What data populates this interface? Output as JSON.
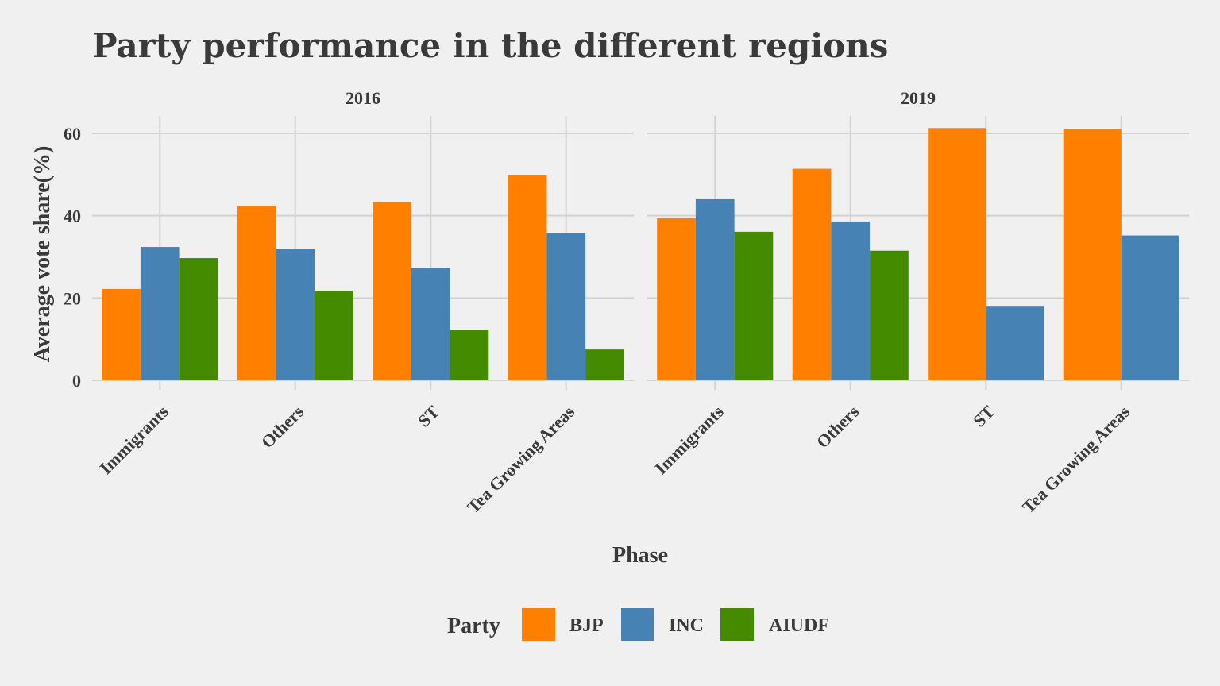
{
  "chart_data": {
    "type": "bar",
    "title": "Party performance in the different regions",
    "xlabel": "Phase",
    "ylabel": "Average vote share(%)",
    "ylim": [
      0,
      64
    ],
    "yticks": [
      "0",
      "20",
      "40",
      "60"
    ],
    "grid": true,
    "legend": {
      "title": "Party",
      "placement": "bottom",
      "items": [
        {
          "name": "BJP",
          "color": "#ff7f00"
        },
        {
          "name": "INC",
          "color": "#4682b4"
        },
        {
          "name": "AIUDF",
          "color": "#458b00"
        }
      ]
    },
    "categories": [
      "Immigrants",
      "Others",
      "ST",
      "Tea Growing Areas"
    ],
    "facets": [
      {
        "label": "2016",
        "series": [
          {
            "name": "BJP",
            "values": [
              22.2,
              42.3,
              43.3,
              49.9
            ]
          },
          {
            "name": "INC",
            "values": [
              32.4,
              32.0,
              27.2,
              35.8
            ]
          },
          {
            "name": "AIUDF",
            "values": [
              29.7,
              21.8,
              12.2,
              7.5
            ]
          }
        ]
      },
      {
        "label": "2019",
        "series": [
          {
            "name": "BJP",
            "values": [
              39.4,
              51.4,
              61.3,
              61.1
            ]
          },
          {
            "name": "INC",
            "values": [
              44.0,
              38.6,
              17.9,
              35.2
            ]
          },
          {
            "name": "AIUDF",
            "values": [
              36.1,
              31.5,
              null,
              null
            ]
          }
        ]
      }
    ]
  }
}
